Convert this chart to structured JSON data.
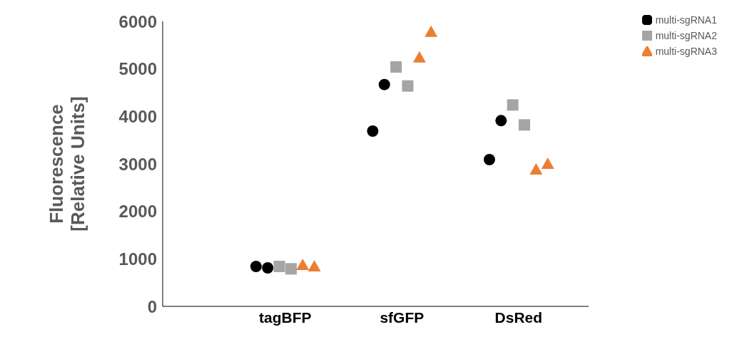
{
  "chart_data": {
    "type": "scatter",
    "ylabel": "Fluorescence\n[Relative Units]",
    "categories": [
      "tagBFP",
      "sfGFP",
      "DsRed"
    ],
    "series": [
      {
        "name": "multi-sgRNA1",
        "color": "#000000",
        "marker": "circle",
        "x": [
          "tagBFP",
          "tagBFP",
          "sfGFP",
          "sfGFP",
          "DsRed",
          "DsRed"
        ],
        "values": [
          840,
          810,
          3690,
          4670,
          3090,
          3910
        ]
      },
      {
        "name": "multi-sgRNA2",
        "color": "#a5a5a5",
        "marker": "square",
        "x": [
          "tagBFP",
          "tagBFP",
          "sfGFP",
          "sfGFP",
          "DsRed",
          "DsRed"
        ],
        "values": [
          840,
          790,
          5040,
          4640,
          4240,
          3820
        ]
      },
      {
        "name": "multi-sgRNA3",
        "color": "#ed7d31",
        "marker": "triangle",
        "x": [
          "tagBFP",
          "tagBFP",
          "sfGFP",
          "sfGFP",
          "DsRed",
          "DsRed"
        ],
        "values": [
          870,
          840,
          5240,
          5780,
          2880,
          3000
        ]
      }
    ],
    "ylim": [
      0,
      6000
    ],
    "yticks": [
      0,
      1000,
      2000,
      3000,
      4000,
      5000,
      6000
    ],
    "grid": false,
    "legend": "top right"
  }
}
